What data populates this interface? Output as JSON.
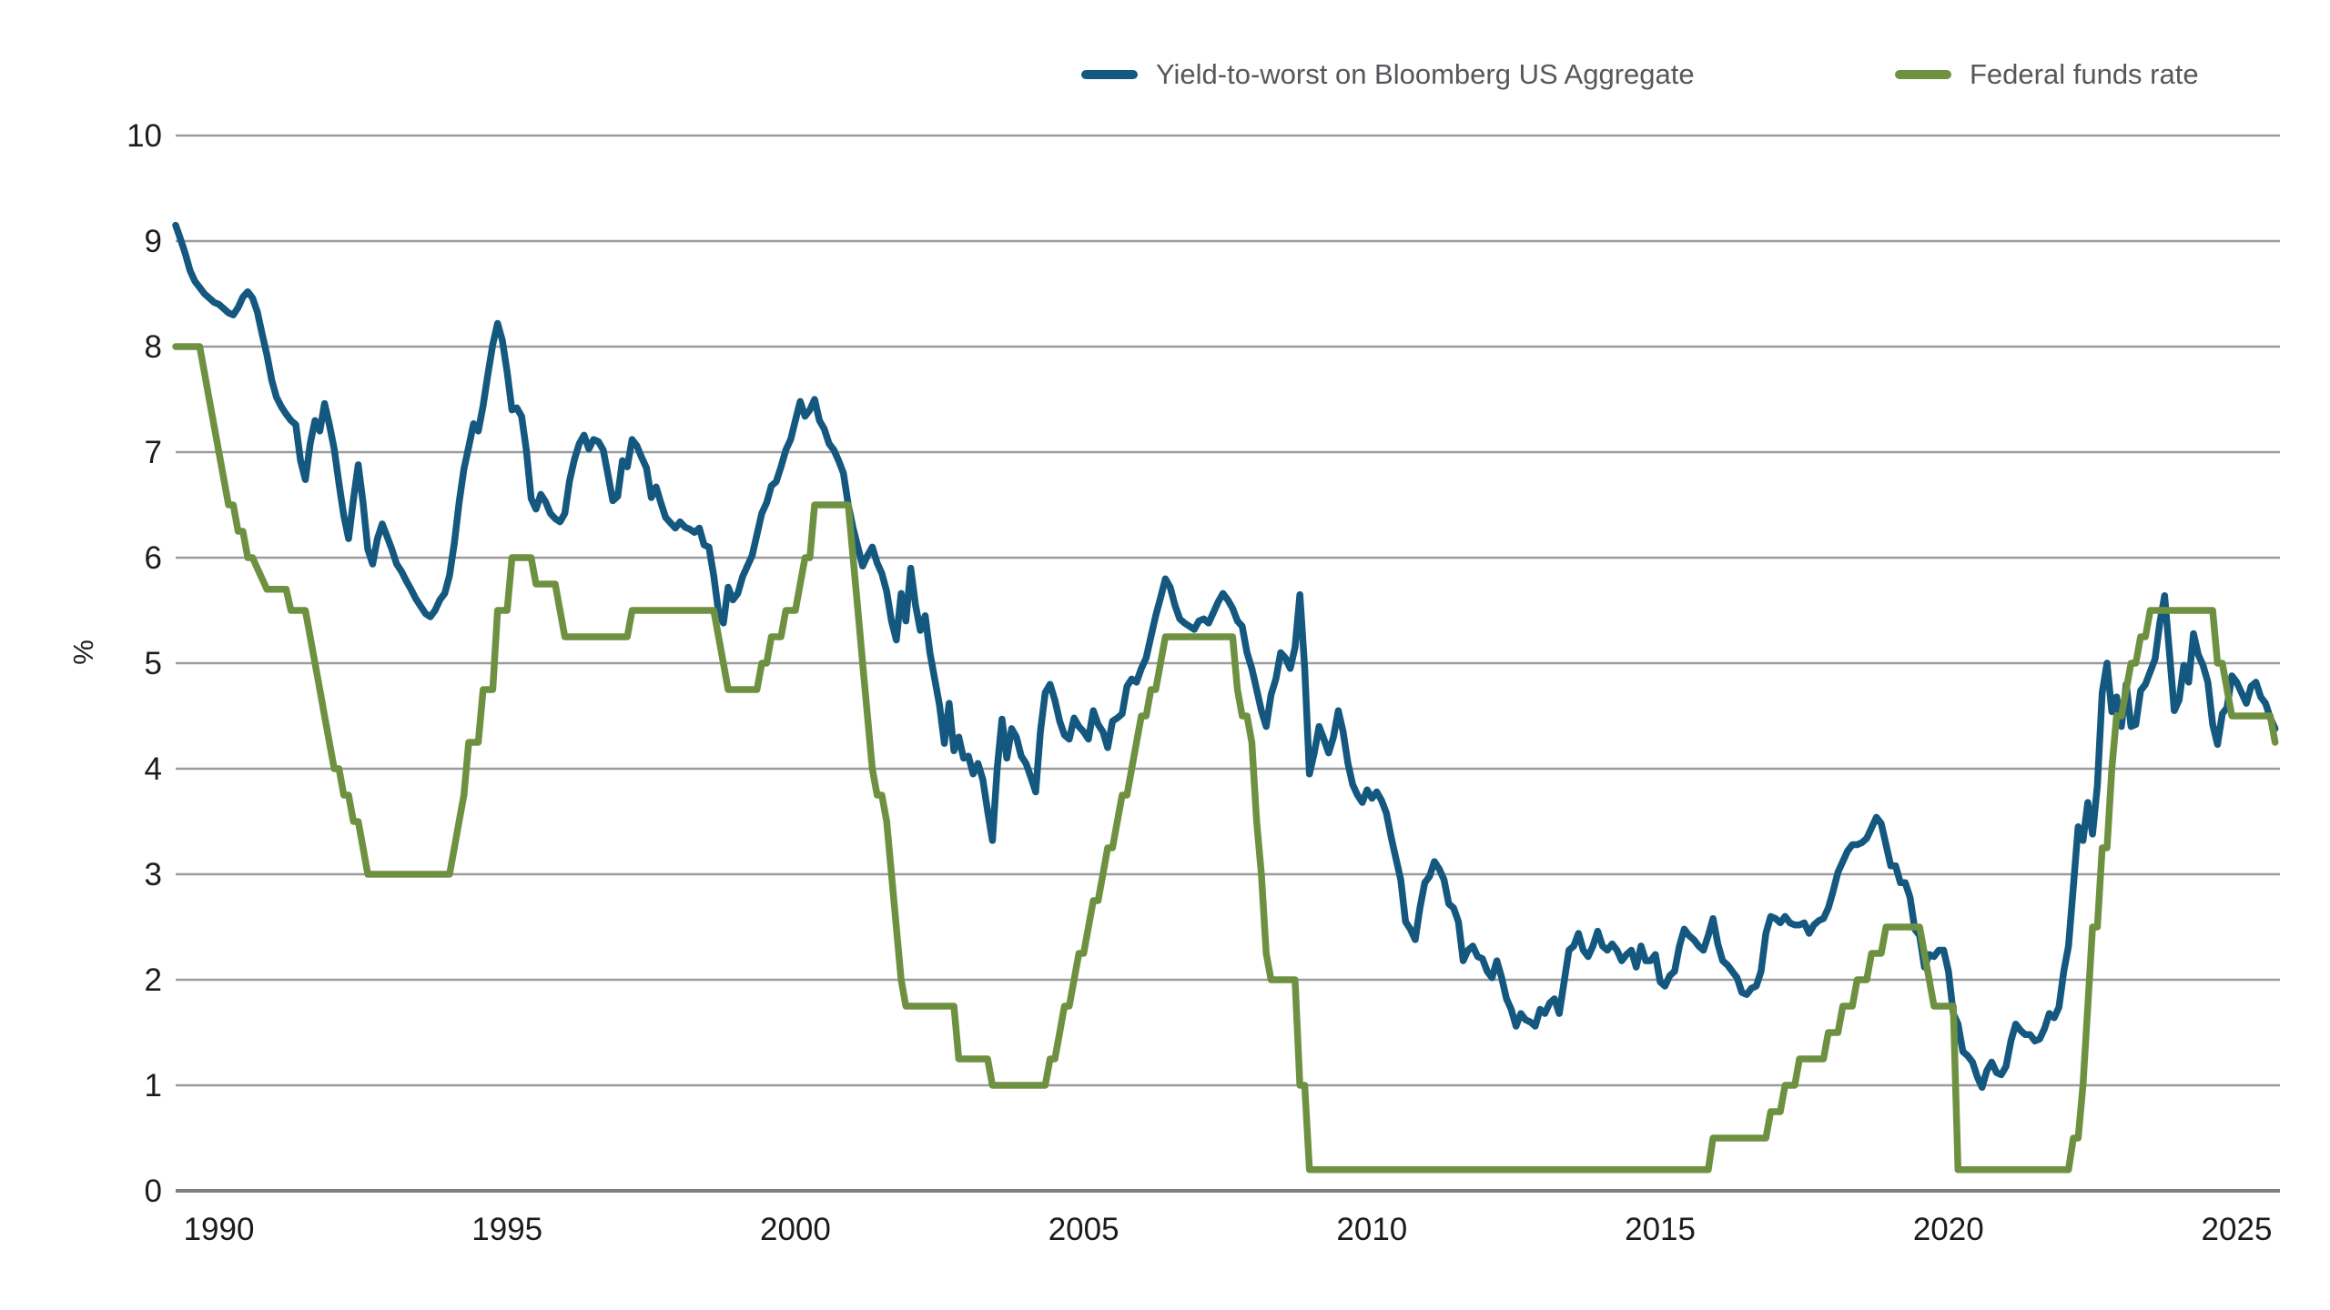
{
  "legend": {
    "yield_label": "Yield-to-worst on Bloomberg US Aggregate",
    "fed_funds_label": "Federal funds rate"
  },
  "colors": {
    "yield_line": "#14587f",
    "fed_funds_line": "#6e9141",
    "gridline": "#9b9b9b",
    "zero_line": "#7d7f82",
    "tick_text": "#1c1c1c",
    "legend_text": "#55575a"
  },
  "chart_data": {
    "type": "line",
    "title": "",
    "xlabel": "",
    "ylabel": "%",
    "ylim": [
      0,
      10
    ],
    "xlim": [
      1989.25,
      2025.75
    ],
    "y_ticks": [
      0,
      1,
      2,
      3,
      4,
      5,
      6,
      7,
      8,
      9,
      10
    ],
    "x_ticks": [
      1990,
      1995,
      2000,
      2005,
      2010,
      2015,
      2020,
      2025
    ],
    "grid": "horizontal",
    "legend_position": "top-right",
    "frequency": "monthly",
    "start_year": 1989,
    "start_month": 4,
    "series": [
      {
        "name": "Yield-to-worst on Bloomberg US Aggregate",
        "color": "#14587f",
        "values": [
          9.15,
          9.02,
          8.88,
          8.72,
          8.62,
          8.56,
          8.5,
          8.46,
          8.42,
          8.4,
          8.36,
          8.32,
          8.3,
          8.37,
          8.47,
          8.52,
          8.46,
          8.33,
          8.12,
          7.92,
          7.68,
          7.52,
          7.43,
          7.36,
          7.3,
          7.26,
          6.92,
          6.74,
          7.08,
          7.3,
          7.2,
          7.46,
          7.26,
          7.03,
          6.7,
          6.4,
          6.18,
          6.55,
          6.88,
          6.52,
          6.08,
          5.94,
          6.18,
          6.32,
          6.2,
          6.08,
          5.94,
          5.87,
          5.78,
          5.7,
          5.61,
          5.54,
          5.47,
          5.44,
          5.5,
          5.6,
          5.66,
          5.83,
          6.14,
          6.52,
          6.84,
          7.05,
          7.27,
          7.2,
          7.44,
          7.74,
          8.02,
          8.22,
          8.06,
          7.76,
          7.4,
          7.42,
          7.34,
          7.02,
          6.56,
          6.46,
          6.6,
          6.53,
          6.42,
          6.37,
          6.34,
          6.42,
          6.73,
          6.93,
          7.08,
          7.16,
          7.03,
          7.12,
          7.1,
          7.02,
          6.78,
          6.54,
          6.58,
          6.92,
          6.86,
          7.12,
          7.06,
          6.95,
          6.85,
          6.57,
          6.67,
          6.52,
          6.38,
          6.33,
          6.28,
          6.34,
          6.29,
          6.27,
          6.24,
          6.28,
          6.12,
          6.1,
          5.83,
          5.48,
          5.38,
          5.72,
          5.6,
          5.66,
          5.82,
          5.92,
          6.02,
          6.22,
          6.42,
          6.52,
          6.68,
          6.72,
          6.86,
          7.02,
          7.12,
          7.3,
          7.48,
          7.34,
          7.4,
          7.5,
          7.3,
          7.22,
          7.08,
          7.02,
          6.92,
          6.8,
          6.5,
          6.28,
          6.1,
          5.92,
          6.02,
          6.1,
          5.95,
          5.85,
          5.68,
          5.4,
          5.22,
          5.66,
          5.4,
          5.9,
          5.55,
          5.31,
          5.45,
          5.1,
          4.85,
          4.6,
          4.24,
          4.62,
          4.17,
          4.3,
          4.1,
          4.12,
          3.95,
          4.05,
          3.9,
          3.6,
          3.32,
          4.0,
          4.47,
          4.1,
          4.38,
          4.3,
          4.12,
          4.05,
          3.92,
          3.78,
          4.35,
          4.72,
          4.8,
          4.65,
          4.45,
          4.32,
          4.28,
          4.48,
          4.4,
          4.35,
          4.28,
          4.55,
          4.42,
          4.35,
          4.2,
          4.45,
          4.48,
          4.52,
          4.78,
          4.85,
          4.82,
          4.95,
          5.05,
          5.25,
          5.45,
          5.62,
          5.8,
          5.72,
          5.55,
          5.42,
          5.38,
          5.35,
          5.32,
          5.4,
          5.42,
          5.38,
          5.48,
          5.58,
          5.66,
          5.6,
          5.52,
          5.4,
          5.35,
          5.1,
          4.95,
          4.75,
          4.55,
          4.4,
          4.7,
          4.85,
          5.1,
          5.05,
          4.95,
          5.15,
          5.65,
          4.95,
          3.95,
          4.15,
          4.4,
          4.28,
          4.15,
          4.3,
          4.55,
          4.35,
          4.05,
          3.85,
          3.75,
          3.68,
          3.8,
          3.72,
          3.78,
          3.7,
          3.58,
          3.35,
          3.15,
          2.95,
          2.55,
          2.48,
          2.38,
          2.68,
          2.92,
          2.98,
          3.12,
          3.05,
          2.95,
          2.72,
          2.68,
          2.55,
          2.18,
          2.28,
          2.32,
          2.22,
          2.2,
          2.08,
          2.02,
          2.18,
          2.02,
          1.82,
          1.72,
          1.56,
          1.68,
          1.62,
          1.6,
          1.56,
          1.72,
          1.68,
          1.78,
          1.82,
          1.68,
          1.98,
          2.28,
          2.32,
          2.44,
          2.28,
          2.22,
          2.32,
          2.46,
          2.32,
          2.28,
          2.34,
          2.28,
          2.18,
          2.24,
          2.28,
          2.12,
          2.32,
          2.18,
          2.18,
          2.24,
          1.98,
          1.94,
          2.04,
          2.08,
          2.32,
          2.48,
          2.42,
          2.38,
          2.32,
          2.28,
          2.42,
          2.58,
          2.34,
          2.18,
          2.14,
          2.08,
          2.02,
          1.88,
          1.86,
          1.92,
          1.94,
          2.08,
          2.44,
          2.6,
          2.58,
          2.54,
          2.6,
          2.54,
          2.52,
          2.52,
          2.54,
          2.44,
          2.52,
          2.56,
          2.58,
          2.68,
          2.84,
          3.02,
          3.12,
          3.22,
          3.28,
          3.28,
          3.3,
          3.34,
          3.44,
          3.54,
          3.48,
          3.28,
          3.08,
          3.08,
          2.92,
          2.92,
          2.78,
          2.48,
          2.42,
          2.12,
          2.24,
          2.22,
          2.28,
          2.28,
          2.08,
          1.68,
          1.58,
          1.32,
          1.28,
          1.22,
          1.08,
          0.98,
          1.14,
          1.22,
          1.12,
          1.1,
          1.18,
          1.42,
          1.58,
          1.52,
          1.48,
          1.48,
          1.42,
          1.44,
          1.54,
          1.68,
          1.64,
          1.74,
          2.08,
          2.32,
          2.88,
          3.45,
          3.32,
          3.68,
          3.38,
          3.84,
          4.72,
          5.0,
          4.54,
          4.68,
          4.4,
          4.8,
          4.4,
          4.42,
          4.74,
          4.8,
          4.92,
          5.04,
          5.38,
          5.64,
          5.1,
          4.55,
          4.65,
          4.98,
          4.82,
          5.28,
          5.08,
          4.98,
          4.82,
          4.42,
          4.23,
          4.52,
          4.58,
          4.88,
          4.82,
          4.72,
          4.62,
          4.78,
          4.82,
          4.68,
          4.62,
          4.48,
          4.38
        ]
      },
      {
        "name": "Federal funds rate",
        "color": "#6e9141",
        "values": [
          8.0,
          8.0,
          8.0,
          8.0,
          8.0,
          8.0,
          7.75,
          7.5,
          7.25,
          7.0,
          6.75,
          6.5,
          6.5,
          6.25,
          6.25,
          6.0,
          6.0,
          5.9,
          5.8,
          5.7,
          5.7,
          5.7,
          5.7,
          5.7,
          5.5,
          5.5,
          5.5,
          5.5,
          5.25,
          5.0,
          4.75,
          4.5,
          4.25,
          4.0,
          4.0,
          3.75,
          3.75,
          3.5,
          3.5,
          3.25,
          3.0,
          3.0,
          3.0,
          3.0,
          3.0,
          3.0,
          3.0,
          3.0,
          3.0,
          3.0,
          3.0,
          3.0,
          3.0,
          3.0,
          3.0,
          3.0,
          3.0,
          3.0,
          3.25,
          3.5,
          3.75,
          4.25,
          4.25,
          4.25,
          4.75,
          4.75,
          4.75,
          5.5,
          5.5,
          5.5,
          6.0,
          6.0,
          6.0,
          6.0,
          6.0,
          5.75,
          5.75,
          5.75,
          5.75,
          5.75,
          5.5,
          5.25,
          5.25,
          5.25,
          5.25,
          5.25,
          5.25,
          5.25,
          5.25,
          5.25,
          5.25,
          5.25,
          5.25,
          5.25,
          5.25,
          5.5,
          5.5,
          5.5,
          5.5,
          5.5,
          5.5,
          5.5,
          5.5,
          5.5,
          5.5,
          5.5,
          5.5,
          5.5,
          5.5,
          5.5,
          5.5,
          5.5,
          5.5,
          5.25,
          5.0,
          4.75,
          4.75,
          4.75,
          4.75,
          4.75,
          4.75,
          4.75,
          5.0,
          5.0,
          5.25,
          5.25,
          5.25,
          5.5,
          5.5,
          5.5,
          5.75,
          6.0,
          6.0,
          6.5,
          6.5,
          6.5,
          6.5,
          6.5,
          6.5,
          6.5,
          6.5,
          6.0,
          5.5,
          5.0,
          4.5,
          4.0,
          3.75,
          3.75,
          3.5,
          3.0,
          2.5,
          2.0,
          1.75,
          1.75,
          1.75,
          1.75,
          1.75,
          1.75,
          1.75,
          1.75,
          1.75,
          1.75,
          1.75,
          1.25,
          1.25,
          1.25,
          1.25,
          1.25,
          1.25,
          1.25,
          1.0,
          1.0,
          1.0,
          1.0,
          1.0,
          1.0,
          1.0,
          1.0,
          1.0,
          1.0,
          1.0,
          1.0,
          1.25,
          1.25,
          1.5,
          1.75,
          1.75,
          2.0,
          2.25,
          2.25,
          2.5,
          2.75,
          2.75,
          3.0,
          3.25,
          3.25,
          3.5,
          3.75,
          3.75,
          4.0,
          4.25,
          4.5,
          4.5,
          4.75,
          4.75,
          5.0,
          5.25,
          5.25,
          5.25,
          5.25,
          5.25,
          5.25,
          5.25,
          5.25,
          5.25,
          5.25,
          5.25,
          5.25,
          5.25,
          5.25,
          5.25,
          4.75,
          4.5,
          4.5,
          4.25,
          3.5,
          3.0,
          2.25,
          2.0,
          2.0,
          2.0,
          2.0,
          2.0,
          2.0,
          1.0,
          1.0,
          0.2,
          0.2,
          0.2,
          0.2,
          0.2,
          0.2,
          0.2,
          0.2,
          0.2,
          0.2,
          0.2,
          0.2,
          0.2,
          0.2,
          0.2,
          0.2,
          0.2,
          0.2,
          0.2,
          0.2,
          0.2,
          0.2,
          0.2,
          0.2,
          0.2,
          0.2,
          0.2,
          0.2,
          0.2,
          0.2,
          0.2,
          0.2,
          0.2,
          0.2,
          0.2,
          0.2,
          0.2,
          0.2,
          0.2,
          0.2,
          0.2,
          0.2,
          0.2,
          0.2,
          0.2,
          0.2,
          0.2,
          0.2,
          0.2,
          0.2,
          0.2,
          0.2,
          0.2,
          0.2,
          0.2,
          0.2,
          0.2,
          0.2,
          0.2,
          0.2,
          0.2,
          0.2,
          0.2,
          0.2,
          0.2,
          0.2,
          0.2,
          0.2,
          0.2,
          0.2,
          0.2,
          0.2,
          0.2,
          0.2,
          0.2,
          0.2,
          0.2,
          0.2,
          0.2,
          0.2,
          0.2,
          0.2,
          0.2,
          0.2,
          0.5,
          0.5,
          0.5,
          0.5,
          0.5,
          0.5,
          0.5,
          0.5,
          0.5,
          0.5,
          0.5,
          0.5,
          0.75,
          0.75,
          0.75,
          1.0,
          1.0,
          1.0,
          1.25,
          1.25,
          1.25,
          1.25,
          1.25,
          1.25,
          1.5,
          1.5,
          1.5,
          1.75,
          1.75,
          1.75,
          2.0,
          2.0,
          2.0,
          2.25,
          2.25,
          2.25,
          2.5,
          2.5,
          2.5,
          2.5,
          2.5,
          2.5,
          2.5,
          2.5,
          2.25,
          2.0,
          1.75,
          1.75,
          1.75,
          1.75,
          1.75,
          0.2,
          0.2,
          0.2,
          0.2,
          0.2,
          0.2,
          0.2,
          0.2,
          0.2,
          0.2,
          0.2,
          0.2,
          0.2,
          0.2,
          0.2,
          0.2,
          0.2,
          0.2,
          0.2,
          0.2,
          0.2,
          0.2,
          0.2,
          0.2,
          0.5,
          0.5,
          1.0,
          1.75,
          2.5,
          2.5,
          3.25,
          3.25,
          4.0,
          4.5,
          4.5,
          4.75,
          5.0,
          5.0,
          5.25,
          5.25,
          5.5,
          5.5,
          5.5,
          5.5,
          5.5,
          5.5,
          5.5,
          5.5,
          5.5,
          5.5,
          5.5,
          5.5,
          5.5,
          5.5,
          5.0,
          5.0,
          4.75,
          4.5,
          4.5,
          4.5,
          4.5,
          4.5,
          4.5,
          4.5,
          4.5,
          4.5,
          4.25
        ]
      }
    ]
  }
}
